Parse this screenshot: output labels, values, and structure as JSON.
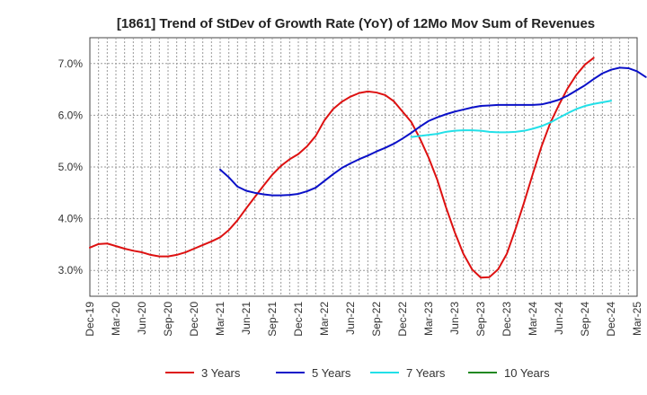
{
  "chart_data": {
    "type": "line",
    "title": "[1861]  Trend of StDev of Growth Rate (YoY) of 12Mo Mov Sum of Revenues",
    "xlabel": "",
    "ylabel": "",
    "ylim": [
      2.5,
      7.5
    ],
    "yticks": [
      3.0,
      4.0,
      5.0,
      6.0,
      7.0
    ],
    "ytick_labels": [
      "3.0%",
      "4.0%",
      "5.0%",
      "6.0%",
      "7.0%"
    ],
    "x_labels": [
      "Dec-19",
      "Mar-20",
      "Jun-20",
      "Sep-20",
      "Dec-20",
      "Mar-21",
      "Jun-21",
      "Sep-21",
      "Dec-21",
      "Mar-22",
      "Jun-22",
      "Sep-22",
      "Dec-22",
      "Mar-23",
      "Jun-23",
      "Sep-23",
      "Dec-23",
      "Mar-24",
      "Jun-24",
      "Sep-24",
      "Dec-24",
      "Mar-25"
    ],
    "legend_position": "bottom",
    "series": [
      {
        "name": "3 Years",
        "color": "#dd1111",
        "start_index": 0,
        "values": [
          3.44,
          3.51,
          3.52,
          3.47,
          3.42,
          3.38,
          3.35,
          3.3,
          3.27,
          3.27,
          3.3,
          3.35,
          3.42,
          3.49,
          3.56,
          3.64,
          3.78,
          3.97,
          4.2,
          4.42,
          4.64,
          4.85,
          5.02,
          5.15,
          5.25,
          5.4,
          5.6,
          5.9,
          6.12,
          6.26,
          6.36,
          6.43,
          6.46,
          6.44,
          6.39,
          6.27,
          6.07,
          5.87,
          5.55,
          5.18,
          4.75,
          4.22,
          3.74,
          3.32,
          3.02,
          2.86,
          2.87,
          3.02,
          3.32,
          3.8,
          4.32,
          4.87,
          5.4,
          5.85,
          6.2,
          6.52,
          6.78,
          6.98,
          7.11
        ]
      },
      {
        "name": "5 Years",
        "color": "#0a10c8",
        "start_index": 15,
        "values": [
          4.95,
          4.8,
          4.62,
          4.54,
          4.5,
          4.47,
          4.45,
          4.45,
          4.46,
          4.48,
          4.53,
          4.6,
          4.73,
          4.86,
          4.98,
          5.07,
          5.15,
          5.22,
          5.3,
          5.37,
          5.45,
          5.55,
          5.66,
          5.78,
          5.89,
          5.96,
          6.02,
          6.07,
          6.11,
          6.15,
          6.18,
          6.19,
          6.2,
          6.2,
          6.2,
          6.2,
          6.2,
          6.21,
          6.25,
          6.3,
          6.38,
          6.48,
          6.58,
          6.7,
          6.81,
          6.88,
          6.92,
          6.91,
          6.85,
          6.74
        ]
      },
      {
        "name": "7 Years",
        "color": "#22e0e8",
        "start_index": 37,
        "values": [
          5.58,
          5.6,
          5.62,
          5.64,
          5.68,
          5.7,
          5.71,
          5.71,
          5.7,
          5.68,
          5.67,
          5.67,
          5.68,
          5.7,
          5.74,
          5.79,
          5.86,
          5.95,
          6.04,
          6.12,
          6.18,
          6.22,
          6.25,
          6.28
        ]
      },
      {
        "name": "10 Years",
        "color": "#228822",
        "start_index": 0,
        "values": []
      }
    ]
  }
}
